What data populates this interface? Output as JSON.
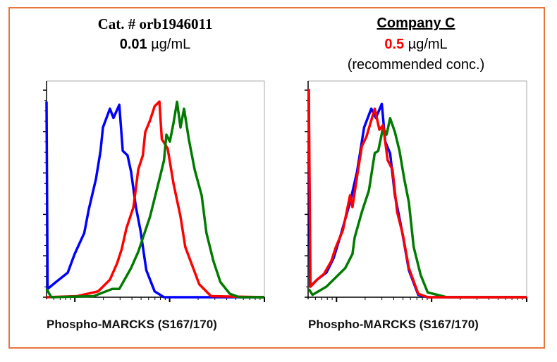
{
  "left_header": {
    "catalog": "Cat. # orb1946011",
    "conc_value": "0.01",
    "conc_unit": "µg/mL"
  },
  "right_header": {
    "company": "Company C",
    "conc_value": "0.5",
    "conc_unit": "µg/mL",
    "note": "(recommended conc.)"
  },
  "colors": {
    "border": "#e8763a",
    "blue": "#0000ff",
    "red": "#ff0000",
    "green": "#007a00",
    "highlight_conc": "#ff0000"
  },
  "chart_data": [
    {
      "type": "line",
      "title": "Cat. # orb1946011 0.01 µg/mL",
      "xlabel": "Phospho-MARCKS (S167/170)",
      "ylabel": "",
      "x_scale": "log",
      "xlim": [
        0,
        100
      ],
      "ylim": [
        0,
        100
      ],
      "series": [
        {
          "color": "#0000ff",
          "points": [
            [
              0,
              90.5
            ],
            [
              0.5,
              3.8
            ],
            [
              4.3,
              7
            ],
            [
              9.7,
              11.3
            ],
            [
              12.9,
              20
            ],
            [
              17.3,
              29.7
            ],
            [
              19.4,
              40.6
            ],
            [
              22.7,
              54.7
            ],
            [
              24.8,
              67.7
            ],
            [
              25.9,
              78.5
            ],
            [
              29.1,
              87.2
            ],
            [
              30.7,
              82.9
            ],
            [
              33.4,
              89
            ],
            [
              35,
              67.7
            ],
            [
              37.2,
              65.6
            ],
            [
              38.8,
              58
            ],
            [
              41,
              41.8
            ],
            [
              43.1,
              30.9
            ],
            [
              45.8,
              12.5
            ],
            [
              49.6,
              2.7
            ],
            [
              53.9,
              0
            ],
            [
              100,
              0
            ]
          ]
        },
        {
          "color": "#ff0000",
          "points": [
            [
              0,
              0
            ],
            [
              14,
              0.5
            ],
            [
              23.7,
              2.7
            ],
            [
              29.1,
              8.1
            ],
            [
              32.4,
              15.7
            ],
            [
              34.5,
              22.2
            ],
            [
              36.7,
              32
            ],
            [
              39.9,
              41.7
            ],
            [
              42.1,
              59.1
            ],
            [
              44.2,
              65.6
            ],
            [
              45.3,
              76.4
            ],
            [
              47.5,
              81.8
            ],
            [
              49.6,
              88.3
            ],
            [
              51.8,
              90.5
            ],
            [
              52.9,
              73.1
            ],
            [
              55.6,
              68.8
            ],
            [
              58.3,
              52.5
            ],
            [
              61.5,
              37.3
            ],
            [
              63.7,
              23.2
            ],
            [
              66.9,
              14.6
            ],
            [
              70.1,
              6
            ],
            [
              75.5,
              0.5
            ],
            [
              100,
              0
            ]
          ]
        },
        {
          "color": "#007a00",
          "points": [
            [
              0,
              3.8
            ],
            [
              2.2,
              0
            ],
            [
              21.6,
              0.5
            ],
            [
              30.2,
              3.8
            ],
            [
              33.4,
              3.8
            ],
            [
              38.8,
              13.5
            ],
            [
              42.1,
              21
            ],
            [
              47.5,
              37.3
            ],
            [
              51.8,
              54.6
            ],
            [
              53.9,
              63.3
            ],
            [
              55,
              75.2
            ],
            [
              56.6,
              72
            ],
            [
              58.3,
              80.6
            ],
            [
              59.9,
              90.4
            ],
            [
              61.5,
              78.5
            ],
            [
              63.1,
              87.2
            ],
            [
              65.3,
              73.1
            ],
            [
              68,
              59
            ],
            [
              71.2,
              47.1
            ],
            [
              73.4,
              29.7
            ],
            [
              76.6,
              16.7
            ],
            [
              79.8,
              7
            ],
            [
              84.1,
              1.6
            ],
            [
              88.5,
              0
            ],
            [
              100,
              0
            ]
          ]
        }
      ]
    },
    {
      "type": "line",
      "title": "Company C 0.5 µg/mL (recommended conc.)",
      "xlabel": "Phospho-MARCKS (S167/170)",
      "ylabel": "",
      "x_scale": "log",
      "xlim": [
        0,
        100
      ],
      "ylim": [
        0,
        100
      ],
      "series": [
        {
          "color": "#0000ff",
          "points": [
            [
              0.3,
              96.4
            ],
            [
              0.9,
              4.9
            ],
            [
              4.1,
              8.1
            ],
            [
              8.4,
              11.4
            ],
            [
              11.6,
              17.9
            ],
            [
              14.9,
              28.7
            ],
            [
              19.2,
              43.9
            ],
            [
              22.4,
              58
            ],
            [
              25.6,
              78.5
            ],
            [
              28.9,
              87.2
            ],
            [
              31,
              82.9
            ],
            [
              33.7,
              89.4
            ],
            [
              35.3,
              72
            ],
            [
              37.5,
              66.5
            ],
            [
              39.7,
              47.1
            ],
            [
              42.9,
              30.9
            ],
            [
              46.1,
              12.5
            ],
            [
              50.4,
              1.1
            ],
            [
              54.7,
              0
            ],
            [
              100,
              0
            ]
          ]
        },
        {
          "color": "#007a00",
          "points": [
            [
              0.3,
              3.8
            ],
            [
              2,
              1.1
            ],
            [
              8.4,
              4.9
            ],
            [
              13.8,
              10.3
            ],
            [
              17,
              13.5
            ],
            [
              20.3,
              20
            ],
            [
              21.3,
              27.6
            ],
            [
              24.6,
              39.5
            ],
            [
              27.8,
              49.3
            ],
            [
              30.5,
              66.6
            ],
            [
              32.1,
              67.7
            ],
            [
              34.3,
              78.5
            ],
            [
              35.9,
              75.2
            ],
            [
              37.5,
              82.8
            ],
            [
              39.7,
              76.4
            ],
            [
              41.8,
              67.7
            ],
            [
              44,
              54.6
            ],
            [
              46.1,
              43.9
            ],
            [
              48.3,
              23.3
            ],
            [
              51.5,
              10.3
            ],
            [
              54.7,
              2.2
            ],
            [
              63.4,
              0
            ],
            [
              100,
              0
            ]
          ]
        },
        {
          "color": "#ff0000",
          "points": [
            [
              0.3,
              96.4
            ],
            [
              1.1,
              4.9
            ],
            [
              4.1,
              8.1
            ],
            [
              7.3,
              10.8
            ],
            [
              10.6,
              16.7
            ],
            [
              12.7,
              23.2
            ],
            [
              15.9,
              30.9
            ],
            [
              19.2,
              47.1
            ],
            [
              20.3,
              41.7
            ],
            [
              22.4,
              55.8
            ],
            [
              24.6,
              69.9
            ],
            [
              26.7,
              74.3
            ],
            [
              28.9,
              81.8
            ],
            [
              30.5,
              87.2
            ],
            [
              32.6,
              77.5
            ],
            [
              34.3,
              79.6
            ],
            [
              36.4,
              63.4
            ],
            [
              38.6,
              59
            ],
            [
              40.7,
              39.5
            ],
            [
              43.4,
              28.7
            ],
            [
              46.1,
              13.5
            ],
            [
              50.4,
              1.6
            ],
            [
              54.7,
              0
            ],
            [
              100,
              0
            ]
          ]
        }
      ]
    }
  ]
}
